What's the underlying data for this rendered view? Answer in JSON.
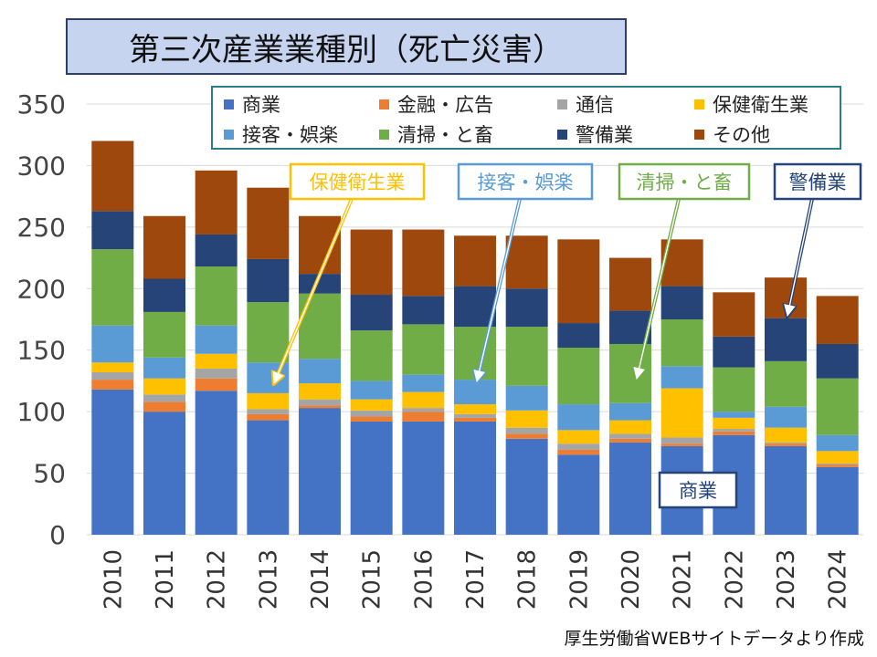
{
  "title": "第三次産業業種別（死亡災害）",
  "source": "厚生労働省WEBサイトデータより作成",
  "chart_data": {
    "type": "bar",
    "stacked": true,
    "title": "第三次産業業種別（死亡災害）",
    "xlabel": "",
    "ylabel": "",
    "ylim": [
      0,
      350
    ],
    "yticks": [
      0,
      50,
      100,
      150,
      200,
      250,
      300,
      350
    ],
    "categories": [
      "2010",
      "2011",
      "2012",
      "2013",
      "2014",
      "2015",
      "2016",
      "2017",
      "2018",
      "2019",
      "2020",
      "2021",
      "2022",
      "2023",
      "2024"
    ],
    "series": [
      {
        "name": "商業",
        "color": "#4472c4",
        "values": [
          118,
          100,
          117,
          93,
          103,
          92,
          92,
          92,
          78,
          65,
          75,
          72,
          81,
          72,
          55
        ]
      },
      {
        "name": "金融・広告",
        "color": "#ed7d31",
        "values": [
          8,
          8,
          10,
          5,
          2,
          4,
          8,
          3,
          4,
          4,
          3,
          2,
          3,
          2,
          2
        ]
      },
      {
        "name": "通信",
        "color": "#a5a5a5",
        "values": [
          6,
          6,
          8,
          4,
          5,
          5,
          3,
          3,
          5,
          5,
          4,
          5,
          2,
          1,
          1
        ]
      },
      {
        "name": "保健衛生業",
        "color": "#ffc000",
        "values": [
          8,
          13,
          12,
          13,
          13,
          9,
          13,
          8,
          14,
          11,
          11,
          40,
          9,
          12,
          10
        ]
      },
      {
        "name": "接客・娯楽",
        "color": "#5b9bd5",
        "values": [
          30,
          17,
          23,
          25,
          20,
          15,
          14,
          20,
          20,
          21,
          14,
          18,
          5,
          17,
          13
        ]
      },
      {
        "name": "清掃・と畜",
        "color": "#70ad47",
        "values": [
          62,
          37,
          48,
          49,
          53,
          41,
          41,
          43,
          48,
          46,
          48,
          38,
          36,
          37,
          46
        ]
      },
      {
        "name": "警備業",
        "color": "#264478",
        "values": [
          31,
          27,
          26,
          35,
          16,
          29,
          23,
          33,
          31,
          20,
          27,
          27,
          25,
          35,
          28
        ]
      },
      {
        "name": "その他",
        "color": "#9e480e",
        "values": [
          57,
          51,
          52,
          58,
          47,
          53,
          54,
          41,
          43,
          68,
          43,
          38,
          36,
          33,
          39
        ]
      }
    ],
    "legend": [
      "商業",
      "金融・広告",
      "通信",
      "保健衛生業",
      "接客・娯楽",
      "清掃・と畜",
      "警備業",
      "その他"
    ],
    "legend_position": "top-right",
    "annotations": [
      {
        "text": "保健衛生業",
        "color": "#ffc000",
        "target_category": "2013",
        "target_series": "保健衛生業"
      },
      {
        "text": "接客・娯楽",
        "color": "#5b9bd5",
        "target_category": "2017",
        "target_series": "接客・娯楽"
      },
      {
        "text": "清掃・と畜",
        "color": "#70ad47",
        "target_category": "2020",
        "target_series": "清掃・と畜"
      },
      {
        "text": "警備業",
        "color": "#264478",
        "target_category": "2023",
        "target_series": "警備業"
      },
      {
        "text": "商業",
        "color": "#264478",
        "target_category": "2020",
        "target_series": "商業"
      }
    ]
  }
}
